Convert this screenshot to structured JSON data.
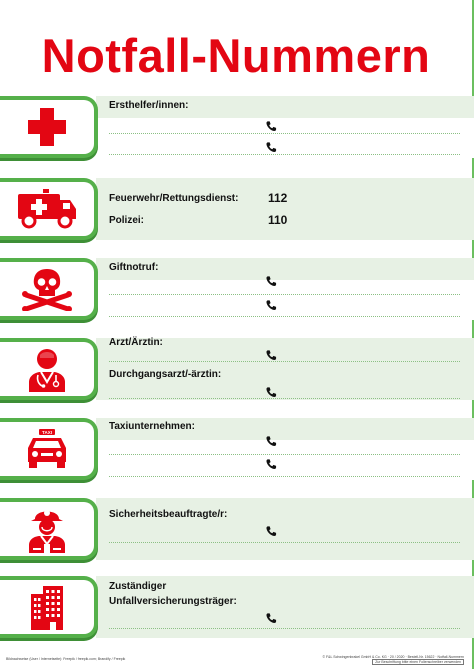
{
  "title": "Notfall-Nummern",
  "colors": {
    "red": "#e30613",
    "green": "#55b04a",
    "band": "#e7f1e4"
  },
  "sections": [
    {
      "icon": "first-aid-cross-icon",
      "lines": [
        {
          "label": "Ersthelfer/innen:"
        }
      ]
    },
    {
      "icon": "ambulance-icon",
      "lines": [
        {
          "label": "Feuerwehr/Rettungsdienst:",
          "number": "112"
        },
        {
          "label": "Polizei:",
          "number": "110"
        }
      ]
    },
    {
      "icon": "skull-crossbones-icon",
      "lines": [
        {
          "label": "Giftnotruf:"
        }
      ]
    },
    {
      "icon": "doctor-icon",
      "lines": [
        {
          "label": "Arzt/Ärztin:"
        },
        {
          "label": "Durchgangsarzt/-ärztin:"
        }
      ]
    },
    {
      "icon": "taxi-icon",
      "lines": [
        {
          "label": "Taxiunternehmen:"
        }
      ]
    },
    {
      "icon": "safety-officer-icon",
      "lines": [
        {
          "label": "Sicherheitsbeauftragte/r:"
        }
      ]
    },
    {
      "icon": "building-icon",
      "lines": [
        {
          "label": "Zuständiger"
        },
        {
          "label": "Unfallversicherungsträger:"
        }
      ]
    }
  ],
  "footer": {
    "left": "Bildnachweise (User / Internetseite): Freepik / freepik.com; Brandify / Freepik",
    "right": "© F&L Schwingenbrakel GmbH & Co. KG · 20 / 2020 · Bestell-Nr. 15622 · Notfall-Nummern",
    "note": "Zur Beschriftung bitte einen Folienschreiber verwenden"
  }
}
